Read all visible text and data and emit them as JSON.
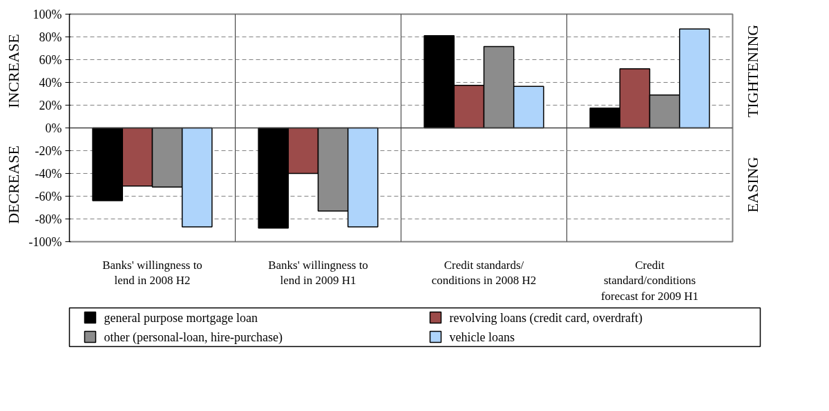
{
  "chart_data": {
    "type": "bar",
    "categories": [
      "Banks' willingness to lend in 2008 H2",
      "Banks' willingness to lend in 2009 H1",
      "Credit standards/ conditions in 2008 H2",
      "Credit standard/conditions forecast for 2009 H1"
    ],
    "series": [
      {
        "name": "general purpose mortgage loan",
        "color": "#000000",
        "values": [
          -64,
          -88,
          81,
          17.5
        ]
      },
      {
        "name": "revolving loans (credit card, overdraft)",
        "color": "#9c4b4a",
        "values": [
          -51,
          -40,
          37.5,
          52
        ]
      },
      {
        "name": "other (personal-loan, hire-purchase)",
        "color": "#8c8c8c",
        "values": [
          -52,
          -73,
          71.5,
          29
        ]
      },
      {
        "name": "vehicle loans",
        "color": "#aed4fb",
        "values": [
          -87,
          -87,
          36.5,
          87
        ]
      }
    ],
    "ylim": [
      -100,
      100
    ],
    "yticks": [
      {
        "value": -100,
        "label": "-100%"
      },
      {
        "value": -80,
        "label": "-80%"
      },
      {
        "value": -60,
        "label": "-60%"
      },
      {
        "value": -40,
        "label": "-40%"
      },
      {
        "value": -20,
        "label": "-20%"
      },
      {
        "value": 0,
        "label": "0%"
      },
      {
        "value": 20,
        "label": "20%"
      },
      {
        "value": 40,
        "label": "40%"
      },
      {
        "value": 60,
        "label": "60%"
      },
      {
        "value": 80,
        "label": "80%"
      },
      {
        "value": 100,
        "label": "100%"
      }
    ],
    "annotations": [
      "INCREASE",
      "DECREASE",
      "TIGHTENING",
      "EASING"
    ],
    "grid": "y",
    "legend": "bottom"
  }
}
